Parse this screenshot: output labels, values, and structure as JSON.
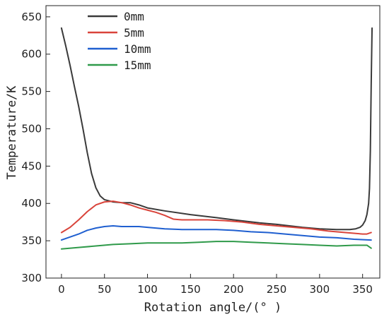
{
  "chart_data": {
    "type": "line",
    "xlabel": "Rotation angle/(° )",
    "ylabel": "Temperature/K",
    "xlim": [
      -18,
      370
    ],
    "ylim": [
      300,
      665
    ],
    "xticks": [
      0,
      50,
      100,
      150,
      200,
      250,
      300,
      350
    ],
    "yticks": [
      300,
      350,
      400,
      450,
      500,
      550,
      600,
      650
    ],
    "legend_position": "top-left",
    "grid": false,
    "series": [
      {
        "name": "0mm",
        "color": "#3a3a3a",
        "points": [
          [
            0,
            635
          ],
          [
            5,
            611
          ],
          [
            10,
            585
          ],
          [
            15,
            557
          ],
          [
            20,
            530
          ],
          [
            25,
            500
          ],
          [
            30,
            468
          ],
          [
            35,
            440
          ],
          [
            40,
            421
          ],
          [
            45,
            410
          ],
          [
            50,
            405
          ],
          [
            60,
            402
          ],
          [
            70,
            401
          ],
          [
            80,
            401
          ],
          [
            90,
            398
          ],
          [
            100,
            394
          ],
          [
            120,
            390
          ],
          [
            150,
            385
          ],
          [
            180,
            381
          ],
          [
            200,
            378
          ],
          [
            230,
            374
          ],
          [
            250,
            372
          ],
          [
            280,
            368
          ],
          [
            300,
            366
          ],
          [
            320,
            365
          ],
          [
            335,
            365
          ],
          [
            342,
            366
          ],
          [
            347,
            368
          ],
          [
            350,
            371
          ],
          [
            353,
            377
          ],
          [
            355,
            385
          ],
          [
            357,
            400
          ],
          [
            358,
            420
          ],
          [
            359,
            470
          ],
          [
            360,
            560
          ],
          [
            361,
            635
          ]
        ]
      },
      {
        "name": "5mm",
        "color": "#d9443b",
        "points": [
          [
            0,
            361
          ],
          [
            10,
            368
          ],
          [
            20,
            378
          ],
          [
            30,
            389
          ],
          [
            40,
            398
          ],
          [
            50,
            402
          ],
          [
            60,
            403
          ],
          [
            70,
            401
          ],
          [
            80,
            398
          ],
          [
            90,
            394
          ],
          [
            100,
            391
          ],
          [
            110,
            388
          ],
          [
            120,
            384
          ],
          [
            130,
            379
          ],
          [
            140,
            378
          ],
          [
            150,
            378
          ],
          [
            170,
            378
          ],
          [
            190,
            377
          ],
          [
            210,
            375
          ],
          [
            230,
            372
          ],
          [
            250,
            370
          ],
          [
            270,
            368
          ],
          [
            290,
            366
          ],
          [
            310,
            363
          ],
          [
            330,
            361
          ],
          [
            350,
            359
          ],
          [
            355,
            359
          ],
          [
            360,
            361
          ]
        ]
      },
      {
        "name": "10mm",
        "color": "#1f5fd0",
        "points": [
          [
            0,
            351
          ],
          [
            10,
            355
          ],
          [
            20,
            359
          ],
          [
            30,
            364
          ],
          [
            40,
            367
          ],
          [
            50,
            369
          ],
          [
            60,
            370
          ],
          [
            70,
            369
          ],
          [
            80,
            369
          ],
          [
            90,
            369
          ],
          [
            100,
            368
          ],
          [
            120,
            366
          ],
          [
            140,
            365
          ],
          [
            160,
            365
          ],
          [
            180,
            365
          ],
          [
            200,
            364
          ],
          [
            220,
            362
          ],
          [
            240,
            361
          ],
          [
            260,
            359
          ],
          [
            280,
            357
          ],
          [
            300,
            355
          ],
          [
            320,
            354
          ],
          [
            340,
            352
          ],
          [
            360,
            351
          ]
        ]
      },
      {
        "name": "15mm",
        "color": "#2f9a4a",
        "points": [
          [
            0,
            339
          ],
          [
            20,
            341
          ],
          [
            40,
            343
          ],
          [
            60,
            345
          ],
          [
            80,
            346
          ],
          [
            100,
            347
          ],
          [
            120,
            347
          ],
          [
            140,
            347
          ],
          [
            160,
            348
          ],
          [
            180,
            349
          ],
          [
            200,
            349
          ],
          [
            220,
            348
          ],
          [
            240,
            347
          ],
          [
            260,
            346
          ],
          [
            280,
            345
          ],
          [
            300,
            344
          ],
          [
            320,
            343
          ],
          [
            340,
            344
          ],
          [
            355,
            344
          ],
          [
            360,
            340
          ]
        ]
      }
    ]
  }
}
